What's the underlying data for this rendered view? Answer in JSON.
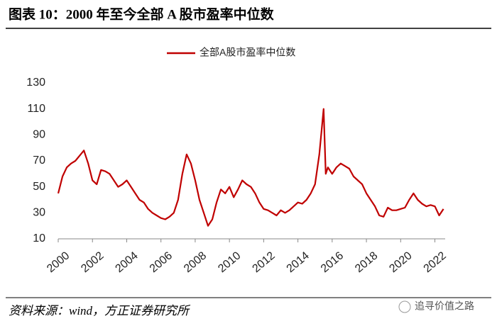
{
  "chart_data": {
    "type": "line",
    "title": "图表 10：2000 年至今全部 A 股市盈率中位数",
    "source": "资料来源：wind，方正证券研究所",
    "watermark": "追寻价值之路",
    "series": [
      {
        "name": "全部A股市盈率中位数",
        "color": "#c00000",
        "x": [
          2000.0,
          2000.25,
          2000.5,
          2000.75,
          2001.0,
          2001.25,
          2001.5,
          2001.75,
          2002.0,
          2002.25,
          2002.5,
          2002.75,
          2003.0,
          2003.25,
          2003.5,
          2003.75,
          2004.0,
          2004.25,
          2004.5,
          2004.75,
          2005.0,
          2005.25,
          2005.5,
          2005.75,
          2006.0,
          2006.25,
          2006.5,
          2006.75,
          2007.0,
          2007.25,
          2007.5,
          2007.75,
          2008.0,
          2008.25,
          2008.5,
          2008.75,
          2009.0,
          2009.25,
          2009.5,
          2009.75,
          2010.0,
          2010.25,
          2010.5,
          2010.75,
          2011.0,
          2011.25,
          2011.5,
          2011.75,
          2012.0,
          2012.25,
          2012.5,
          2012.75,
          2013.0,
          2013.25,
          2013.5,
          2013.75,
          2014.0,
          2014.25,
          2014.5,
          2014.75,
          2015.0,
          2015.25,
          2015.5,
          2015.625,
          2015.75,
          2016.0,
          2016.25,
          2016.5,
          2016.75,
          2017.0,
          2017.25,
          2017.5,
          2017.75,
          2018.0,
          2018.25,
          2018.5,
          2018.75,
          2019.0,
          2019.25,
          2019.5,
          2019.75,
          2020.0,
          2020.25,
          2020.5,
          2020.75,
          2021.0,
          2021.25,
          2021.5,
          2021.75,
          2022.0,
          2022.25,
          2022.5
        ],
        "values": [
          45,
          58,
          65,
          68,
          70,
          74,
          78,
          68,
          55,
          52,
          63,
          62,
          60,
          55,
          50,
          52,
          55,
          50,
          45,
          40,
          38,
          33,
          30,
          28,
          26,
          25,
          27,
          30,
          40,
          60,
          75,
          68,
          55,
          40,
          30,
          20,
          25,
          38,
          48,
          45,
          50,
          42,
          48,
          55,
          52,
          50,
          45,
          38,
          33,
          32,
          30,
          28,
          32,
          30,
          32,
          35,
          38,
          37,
          40,
          45,
          52,
          75,
          110,
          60,
          65,
          60,
          65,
          68,
          66,
          64,
          58,
          55,
          52,
          45,
          40,
          35,
          28,
          27,
          34,
          32,
          32,
          33,
          34,
          40,
          45,
          40,
          37,
          35,
          36,
          35,
          28,
          33
        ]
      }
    ],
    "xlim": [
      2000,
      2022.6
    ],
    "xticks": [
      2000,
      2002,
      2004,
      2006,
      2008,
      2010,
      2012,
      2014,
      2016,
      2018,
      2020,
      2022
    ],
    "ylim": [
      10,
      130
    ],
    "yticks": [
      10,
      30,
      50,
      70,
      90,
      110,
      130
    ],
    "legend": "top"
  }
}
